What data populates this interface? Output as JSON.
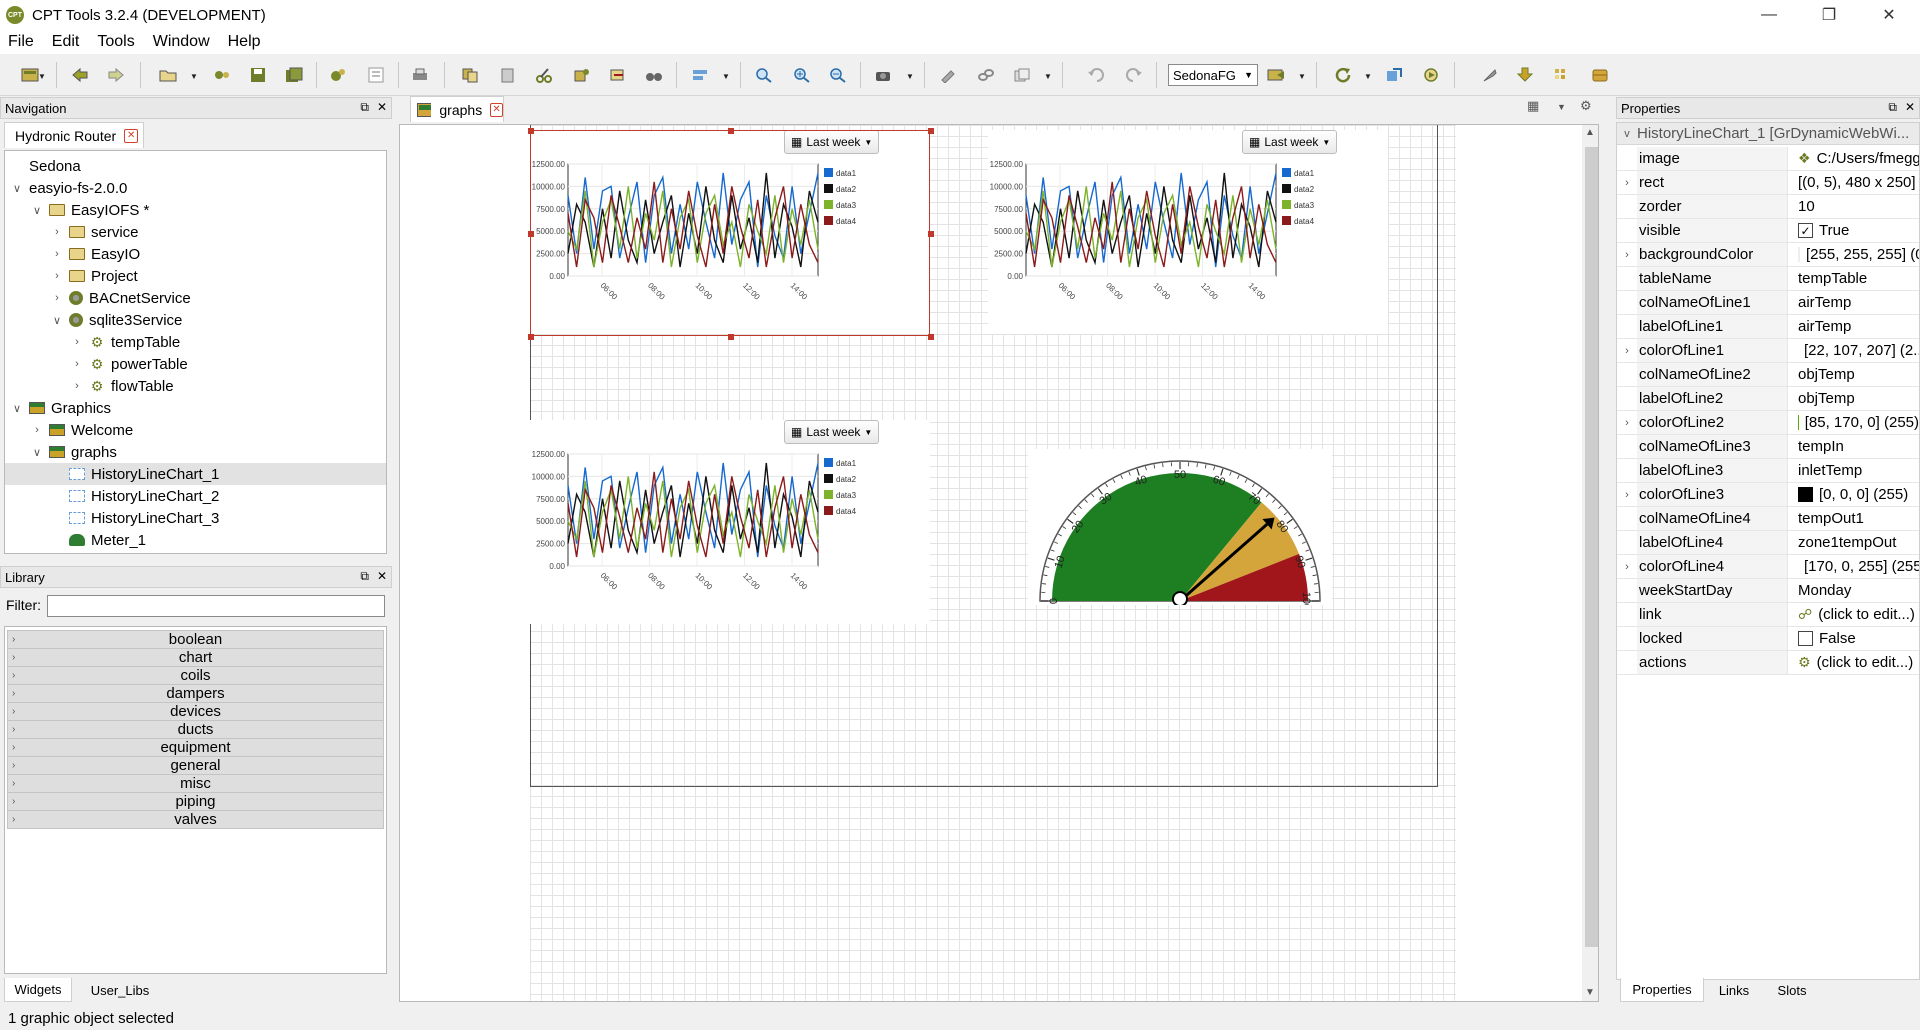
{
  "window": {
    "title": "CPT Tools 3.2.4 (DEVELOPMENT)",
    "logo_text": "CPT"
  },
  "menu": [
    "File",
    "Edit",
    "Tools",
    "Window",
    "Help"
  ],
  "toolbar": {
    "station_combo": "SedonaFG"
  },
  "navigation": {
    "header": "Navigation",
    "tab": "Hydronic Router",
    "tree": [
      {
        "label": "Sedona",
        "indent": 0,
        "twisty": "",
        "icon": "none"
      },
      {
        "label": "easyio-fs-2.0.0",
        "indent": 0,
        "twisty": "v",
        "icon": "none"
      },
      {
        "label": "EasyIOFS *",
        "indent": 1,
        "twisty": "v",
        "icon": "folder"
      },
      {
        "label": "service",
        "indent": 2,
        "twisty": ">",
        "icon": "folder"
      },
      {
        "label": "EasyIO",
        "indent": 2,
        "twisty": ">",
        "icon": "folder"
      },
      {
        "label": "Project",
        "indent": 2,
        "twisty": ">",
        "icon": "folder"
      },
      {
        "label": "BACnetService",
        "indent": 2,
        "twisty": ">",
        "icon": "component"
      },
      {
        "label": "sqlite3Service",
        "indent": 2,
        "twisty": "v",
        "icon": "component"
      },
      {
        "label": "tempTable",
        "indent": 3,
        "twisty": ">",
        "icon": "gear"
      },
      {
        "label": "powerTable",
        "indent": 3,
        "twisty": ">",
        "icon": "gear"
      },
      {
        "label": "flowTable",
        "indent": 3,
        "twisty": ">",
        "icon": "gear"
      },
      {
        "label": "Graphics",
        "indent": 0,
        "twisty": "v",
        "icon": "graphic"
      },
      {
        "label": "Welcome",
        "indent": 1,
        "twisty": ">",
        "icon": "graphic"
      },
      {
        "label": "graphs",
        "indent": 1,
        "twisty": "v",
        "icon": "graphic"
      },
      {
        "label": "HistoryLineChart_1",
        "indent": 2,
        "twisty": "",
        "icon": "chart",
        "selected": true
      },
      {
        "label": "HistoryLineChart_2",
        "indent": 2,
        "twisty": "",
        "icon": "chart"
      },
      {
        "label": "HistoryLineChart_3",
        "indent": 2,
        "twisty": "",
        "icon": "chart"
      },
      {
        "label": "Meter_1",
        "indent": 2,
        "twisty": "",
        "icon": "meter"
      }
    ]
  },
  "library": {
    "header": "Library",
    "filter_label": "Filter:",
    "filter_value": "",
    "categories": [
      "boolean",
      "chart",
      "coils",
      "dampers",
      "devices",
      "ducts",
      "equipment",
      "general",
      "misc",
      "piping",
      "valves"
    ],
    "tabs": [
      "Widgets",
      "User_Libs"
    ]
  },
  "editor": {
    "tab": "graphs",
    "range_button": "Last week"
  },
  "chart_data": [
    {
      "type": "line",
      "name": "HistoryLineChart_1",
      "ylim": [
        0,
        12500
      ],
      "yticks": [
        "12500.00",
        "10000.00",
        "7500.00",
        "5000.00",
        "2500.00",
        "0.00"
      ],
      "xticks": [
        "06:00",
        "08:00",
        "10:00",
        "12:00",
        "14:00"
      ],
      "series": [
        {
          "name": "data1",
          "color": "#1669cf",
          "values": [
            9000,
            2500,
            11000,
            3000,
            9500,
            10000,
            2000,
            6500,
            10500,
            1500,
            9000,
            11000,
            2500,
            8000,
            3000,
            10500,
            6000,
            2000,
            11500,
            3500,
            8500,
            10500,
            1000,
            9000,
            4500,
            2000,
            10000,
            2500,
            7000,
            11500
          ]
        },
        {
          "name": "data2",
          "color": "#111111",
          "values": [
            2500,
            8000,
            6000,
            1000,
            7500,
            2000,
            9500,
            4000,
            1500,
            8500,
            2500,
            6000,
            9000,
            1000,
            7000,
            2500,
            10000,
            4000,
            1500,
            9000,
            3000,
            6500,
            1500,
            11500,
            2000,
            8000,
            5500,
            1000,
            9500,
            6000
          ]
        },
        {
          "name": "data3",
          "color": "#7cb32a",
          "values": [
            5000,
            3000,
            9500,
            1000,
            6000,
            8500,
            3000,
            10000,
            2000,
            7000,
            4000,
            9500,
            1000,
            6500,
            8500,
            1500,
            7000,
            9000,
            3500,
            6000,
            1000,
            8000,
            5000,
            2500,
            9000,
            1500,
            7500,
            3500,
            8500,
            3000
          ]
        },
        {
          "name": "data4",
          "color": "#8b1a1a",
          "values": [
            7000,
            1000,
            8500,
            6500,
            1500,
            9000,
            5500,
            1500,
            6500,
            3000,
            10500,
            1500,
            7500,
            3000,
            9500,
            4500,
            1000,
            8000,
            2500,
            10000,
            5500,
            2000,
            8500,
            1000,
            6500,
            10000,
            2000,
            8000,
            3500,
            1500
          ]
        }
      ]
    },
    {
      "type": "line",
      "name": "HistoryLineChart_2",
      "ylim": [
        0,
        12500
      ],
      "yticks": [
        "12500.00",
        "10000.00",
        "7500.00",
        "5000.00",
        "2500.00",
        "0.00"
      ],
      "xticks": [
        "06:00",
        "08:00",
        "10:00",
        "12:00",
        "14:00"
      ],
      "series": [
        {
          "name": "data1",
          "color": "#1669cf",
          "values": [
            9000,
            2500,
            11000,
            3000,
            9500,
            10000,
            2000,
            6500,
            10500,
            1500,
            9000,
            11000,
            2500,
            8000,
            3000,
            10500,
            6000,
            2000,
            11500,
            3500,
            8500,
            10500,
            1000,
            9000,
            4500,
            2000,
            10000,
            2500,
            7000,
            11500
          ]
        },
        {
          "name": "data2",
          "color": "#111111",
          "values": [
            2500,
            8000,
            6000,
            1000,
            7500,
            2000,
            9500,
            4000,
            1500,
            8500,
            2500,
            6000,
            9000,
            1000,
            7000,
            2500,
            10000,
            4000,
            1500,
            9000,
            3000,
            6500,
            1500,
            11500,
            2000,
            8000,
            5500,
            1000,
            9500,
            6000
          ]
        },
        {
          "name": "data3",
          "color": "#7cb32a",
          "values": [
            5000,
            3000,
            9500,
            1000,
            6000,
            8500,
            3000,
            10000,
            2000,
            7000,
            4000,
            9500,
            1000,
            6500,
            8500,
            1500,
            7000,
            9000,
            3500,
            6000,
            1000,
            8000,
            5000,
            2500,
            9000,
            1500,
            7500,
            3500,
            8500,
            3000
          ]
        },
        {
          "name": "data4",
          "color": "#8b1a1a",
          "values": [
            7000,
            1000,
            8500,
            6500,
            1500,
            9000,
            5500,
            1500,
            6500,
            3000,
            10500,
            1500,
            7500,
            3000,
            9500,
            4500,
            1000,
            8000,
            2500,
            10000,
            5500,
            2000,
            8500,
            1000,
            6500,
            10000,
            2000,
            8000,
            3500,
            1500
          ]
        }
      ]
    },
    {
      "type": "line",
      "name": "HistoryLineChart_3",
      "ylim": [
        0,
        12500
      ],
      "yticks": [
        "12500.00",
        "10000.00",
        "7500.00",
        "5000.00",
        "2500.00",
        "0.00"
      ],
      "xticks": [
        "06:00",
        "08:00",
        "10:00",
        "12:00",
        "14:00"
      ],
      "series": [
        {
          "name": "data1",
          "color": "#1669cf",
          "values": [
            9000,
            2500,
            11000,
            3000,
            9500,
            10000,
            2000,
            6500,
            10500,
            1500,
            9000,
            11000,
            2500,
            8000,
            3000,
            10500,
            6000,
            2000,
            11500,
            3500,
            8500,
            10500,
            1000,
            9000,
            4500,
            2000,
            10000,
            2500,
            7000,
            11500
          ]
        },
        {
          "name": "data2",
          "color": "#111111",
          "values": [
            2500,
            8000,
            6000,
            1000,
            7500,
            2000,
            9500,
            4000,
            1500,
            8500,
            2500,
            6000,
            9000,
            1000,
            7000,
            2500,
            10000,
            4000,
            1500,
            9000,
            3000,
            6500,
            1500,
            11500,
            2000,
            8000,
            5500,
            1000,
            9500,
            6000
          ]
        },
        {
          "name": "data3",
          "color": "#7cb32a",
          "values": [
            5000,
            3000,
            9500,
            1000,
            6000,
            8500,
            3000,
            10000,
            2000,
            7000,
            4000,
            9500,
            1000,
            6500,
            8500,
            1500,
            7000,
            9000,
            3500,
            6000,
            1000,
            8000,
            5000,
            2500,
            9000,
            1500,
            7500,
            3500,
            8500,
            3000
          ]
        },
        {
          "name": "data4",
          "color": "#8b1a1a",
          "values": [
            7000,
            1000,
            8500,
            6500,
            1500,
            9000,
            5500,
            1500,
            6500,
            3000,
            10500,
            1500,
            7500,
            3000,
            9500,
            4500,
            1000,
            8000,
            2500,
            10000,
            5500,
            2000,
            8500,
            1000,
            6500,
            10000,
            2000,
            8000,
            3500,
            1500
          ]
        }
      ]
    },
    {
      "type": "gauge",
      "name": "Meter_1",
      "range": [
        0,
        100
      ],
      "ticks": [
        "0",
        "10",
        "20",
        "30",
        "40",
        "50",
        "60",
        "70",
        "80",
        "90",
        "100"
      ],
      "value": 77,
      "bands": [
        {
          "from": 0,
          "to": 72,
          "color": "#1e7e22"
        },
        {
          "from": 72,
          "to": 88,
          "color": "#d4a53a"
        },
        {
          "from": 88,
          "to": 100,
          "color": "#a0161a"
        }
      ]
    }
  ],
  "properties": {
    "header": "Properties",
    "selected_title": "HistoryLineChart_1 [GrDynamicWebWi...",
    "rows": [
      {
        "name": "image",
        "value": "C:/Users/fmegg/...",
        "kind": "image",
        "expand": ""
      },
      {
        "name": "rect",
        "value": "[(0, 5), 480 x 250]",
        "kind": "text",
        "expand": ">"
      },
      {
        "name": "zorder",
        "value": "10",
        "kind": "text",
        "expand": ""
      },
      {
        "name": "visible",
        "value": "True",
        "kind": "check-on",
        "expand": ""
      },
      {
        "name": "backgroundColor",
        "value": "[255, 255, 255] (0)",
        "kind": "color",
        "color": "#ffffff",
        "expand": ">"
      },
      {
        "name": "tableName",
        "value": "tempTable",
        "kind": "text",
        "expand": ""
      },
      {
        "name": "colNameOfLine1",
        "value": "airTemp",
        "kind": "text",
        "expand": ""
      },
      {
        "name": "labelOfLine1",
        "value": "airTemp",
        "kind": "text",
        "expand": ""
      },
      {
        "name": "colorOfLine1",
        "value": "[22, 107, 207] (2...",
        "kind": "color",
        "color": "#166bcf",
        "expand": ">"
      },
      {
        "name": "colNameOfLine2",
        "value": "objTemp",
        "kind": "text",
        "expand": ""
      },
      {
        "name": "labelOfLine2",
        "value": "objTemp",
        "kind": "text",
        "expand": ""
      },
      {
        "name": "colorOfLine2",
        "value": "[85, 170, 0] (255)",
        "kind": "color",
        "color": "#55aa00",
        "expand": ">"
      },
      {
        "name": "colNameOfLine3",
        "value": "tempIn",
        "kind": "text",
        "expand": ""
      },
      {
        "name": "labelOfLine3",
        "value": "inletTemp",
        "kind": "text",
        "expand": ""
      },
      {
        "name": "colorOfLine3",
        "value": "[0, 0, 0] (255)",
        "kind": "color",
        "color": "#000000",
        "expand": ">"
      },
      {
        "name": "colNameOfLine4",
        "value": "tempOut1",
        "kind": "text",
        "expand": ""
      },
      {
        "name": "labelOfLine4",
        "value": "zone1tempOut",
        "kind": "text",
        "expand": ""
      },
      {
        "name": "colorOfLine4",
        "value": "[170, 0, 255] (255)",
        "kind": "color",
        "color": "#aa00ff",
        "expand": ">"
      },
      {
        "name": "weekStartDay",
        "value": "Monday",
        "kind": "text",
        "expand": ""
      },
      {
        "name": "link",
        "value": "(click to edit...)",
        "kind": "link",
        "expand": ""
      },
      {
        "name": "locked",
        "value": "False",
        "kind": "check-off",
        "expand": ""
      },
      {
        "name": "actions",
        "value": "(click to edit...)",
        "kind": "action",
        "expand": ""
      }
    ],
    "tabs": [
      "Properties",
      "Links",
      "Slots"
    ]
  },
  "status": "1 graphic object selected"
}
